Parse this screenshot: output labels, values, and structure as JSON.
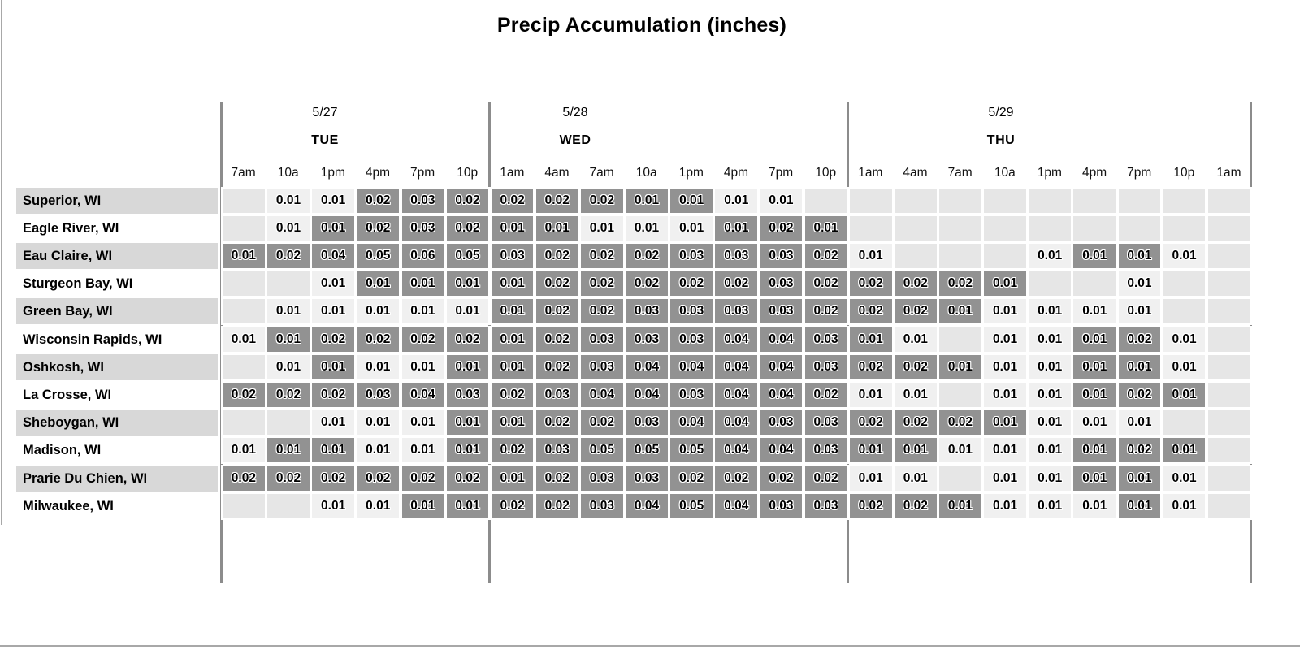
{
  "title": "Precip Accumulation (inches)",
  "colors": {
    "cell_empty": "#e6e6e6",
    "cell_light": "#f0f0f0",
    "cell_dark": "#929292",
    "row_label_stripe": "#d8d8d8",
    "row_label_plain": "#ffffff",
    "separator_line": "#8c8c8c",
    "edge_line": "#a8a8a8",
    "text": "#000000"
  },
  "shade_legend": {
    "D": "dark-gray highlighted cell",
    "L": "light cell with value",
    "": "empty cell"
  },
  "chart_data": {
    "type": "heatmap",
    "title": "Precip Accumulation (inches)",
    "unit": "inches",
    "legend_position": "none",
    "day_groups": [
      {
        "date": "5/27",
        "day": "TUE",
        "col_span": 6
      },
      {
        "date": "5/28",
        "day": "WED",
        "col_span": 8
      },
      {
        "date": "5/29",
        "day": "THU",
        "col_span": 9
      }
    ],
    "columns": [
      "7am",
      "10a",
      "1pm",
      "4pm",
      "7pm",
      "10p",
      "1am",
      "4am",
      "7am",
      "10a",
      "1pm",
      "4pm",
      "7pm",
      "10p",
      "1am",
      "4am",
      "7am",
      "10a",
      "1pm",
      "4pm",
      "7pm",
      "10p",
      "1am"
    ],
    "rows": [
      {
        "name": "Superior, WI",
        "cells": [
          [
            "",
            ""
          ],
          [
            "0.01",
            "L"
          ],
          [
            "0.01",
            "L"
          ],
          [
            "0.02",
            "D"
          ],
          [
            "0.03",
            "D"
          ],
          [
            "0.02",
            "D"
          ],
          [
            "0.02",
            "D"
          ],
          [
            "0.02",
            "D"
          ],
          [
            "0.02",
            "D"
          ],
          [
            "0.01",
            "D"
          ],
          [
            "0.01",
            "D"
          ],
          [
            "0.01",
            "L"
          ],
          [
            "0.01",
            "L"
          ],
          [
            "",
            ""
          ],
          [
            "",
            ""
          ],
          [
            "",
            ""
          ],
          [
            "",
            ""
          ],
          [
            "",
            ""
          ],
          [
            "",
            ""
          ],
          [
            "",
            ""
          ],
          [
            "",
            ""
          ],
          [
            "",
            ""
          ],
          [
            "",
            ""
          ]
        ]
      },
      {
        "name": "Eagle River, WI",
        "cells": [
          [
            "",
            ""
          ],
          [
            "0.01",
            "L"
          ],
          [
            "0.01",
            "D"
          ],
          [
            "0.02",
            "D"
          ],
          [
            "0.03",
            "D"
          ],
          [
            "0.02",
            "D"
          ],
          [
            "0.01",
            "D"
          ],
          [
            "0.01",
            "D"
          ],
          [
            "0.01",
            "L"
          ],
          [
            "0.01",
            "L"
          ],
          [
            "0.01",
            "L"
          ],
          [
            "0.01",
            "D"
          ],
          [
            "0.02",
            "D"
          ],
          [
            "0.01",
            "D"
          ],
          [
            "",
            ""
          ],
          [
            "",
            ""
          ],
          [
            "",
            ""
          ],
          [
            "",
            ""
          ],
          [
            "",
            ""
          ],
          [
            "",
            ""
          ],
          [
            "",
            ""
          ],
          [
            "",
            ""
          ],
          [
            "",
            ""
          ]
        ]
      },
      {
        "name": "Eau Claire, WI",
        "cells": [
          [
            "0.01",
            "D"
          ],
          [
            "0.02",
            "D"
          ],
          [
            "0.04",
            "D"
          ],
          [
            "0.05",
            "D"
          ],
          [
            "0.06",
            "D"
          ],
          [
            "0.05",
            "D"
          ],
          [
            "0.03",
            "D"
          ],
          [
            "0.02",
            "D"
          ],
          [
            "0.02",
            "D"
          ],
          [
            "0.02",
            "D"
          ],
          [
            "0.03",
            "D"
          ],
          [
            "0.03",
            "D"
          ],
          [
            "0.03",
            "D"
          ],
          [
            "0.02",
            "D"
          ],
          [
            "0.01",
            "L"
          ],
          [
            "",
            ""
          ],
          [
            "",
            ""
          ],
          [
            "",
            ""
          ],
          [
            "0.01",
            "L"
          ],
          [
            "0.01",
            "D"
          ],
          [
            "0.01",
            "D"
          ],
          [
            "0.01",
            "L"
          ],
          [
            "",
            ""
          ]
        ]
      },
      {
        "name": "Sturgeon Bay, WI",
        "cells": [
          [
            "",
            ""
          ],
          [
            "",
            ""
          ],
          [
            "0.01",
            "L"
          ],
          [
            "0.01",
            "D"
          ],
          [
            "0.01",
            "D"
          ],
          [
            "0.01",
            "D"
          ],
          [
            "0.01",
            "D"
          ],
          [
            "0.02",
            "D"
          ],
          [
            "0.02",
            "D"
          ],
          [
            "0.02",
            "D"
          ],
          [
            "0.02",
            "D"
          ],
          [
            "0.02",
            "D"
          ],
          [
            "0.03",
            "D"
          ],
          [
            "0.02",
            "D"
          ],
          [
            "0.02",
            "D"
          ],
          [
            "0.02",
            "D"
          ],
          [
            "0.02",
            "D"
          ],
          [
            "0.01",
            "D"
          ],
          [
            "",
            ""
          ],
          [
            "",
            ""
          ],
          [
            "0.01",
            "L"
          ],
          [
            "",
            ""
          ],
          [
            "",
            ""
          ]
        ]
      },
      {
        "name": "Green Bay, WI",
        "cells": [
          [
            "",
            ""
          ],
          [
            "0.01",
            "L"
          ],
          [
            "0.01",
            "L"
          ],
          [
            "0.01",
            "L"
          ],
          [
            "0.01",
            "L"
          ],
          [
            "0.01",
            "L"
          ],
          [
            "0.01",
            "D"
          ],
          [
            "0.02",
            "D"
          ],
          [
            "0.02",
            "D"
          ],
          [
            "0.03",
            "D"
          ],
          [
            "0.03",
            "D"
          ],
          [
            "0.03",
            "D"
          ],
          [
            "0.03",
            "D"
          ],
          [
            "0.02",
            "D"
          ],
          [
            "0.02",
            "D"
          ],
          [
            "0.02",
            "D"
          ],
          [
            "0.01",
            "D"
          ],
          [
            "0.01",
            "L"
          ],
          [
            "0.01",
            "L"
          ],
          [
            "0.01",
            "L"
          ],
          [
            "0.01",
            "L"
          ],
          [
            "",
            ""
          ],
          [
            "",
            ""
          ]
        ]
      },
      {
        "name": "Wisconsin Rapids, WI",
        "cells": [
          [
            "0.01",
            "L"
          ],
          [
            "0.01",
            "D"
          ],
          [
            "0.02",
            "D"
          ],
          [
            "0.02",
            "D"
          ],
          [
            "0.02",
            "D"
          ],
          [
            "0.02",
            "D"
          ],
          [
            "0.01",
            "D"
          ],
          [
            "0.02",
            "D"
          ],
          [
            "0.03",
            "D"
          ],
          [
            "0.03",
            "D"
          ],
          [
            "0.03",
            "D"
          ],
          [
            "0.04",
            "D"
          ],
          [
            "0.04",
            "D"
          ],
          [
            "0.03",
            "D"
          ],
          [
            "0.01",
            "D"
          ],
          [
            "0.01",
            "L"
          ],
          [
            "",
            ""
          ],
          [
            "0.01",
            "L"
          ],
          [
            "0.01",
            "L"
          ],
          [
            "0.01",
            "D"
          ],
          [
            "0.02",
            "D"
          ],
          [
            "0.01",
            "L"
          ],
          [
            "",
            ""
          ]
        ]
      },
      {
        "name": "Oshkosh, WI",
        "cells": [
          [
            "",
            ""
          ],
          [
            "0.01",
            "L"
          ],
          [
            "0.01",
            "D"
          ],
          [
            "0.01",
            "L"
          ],
          [
            "0.01",
            "L"
          ],
          [
            "0.01",
            "D"
          ],
          [
            "0.01",
            "D"
          ],
          [
            "0.02",
            "D"
          ],
          [
            "0.03",
            "D"
          ],
          [
            "0.04",
            "D"
          ],
          [
            "0.04",
            "D"
          ],
          [
            "0.04",
            "D"
          ],
          [
            "0.04",
            "D"
          ],
          [
            "0.03",
            "D"
          ],
          [
            "0.02",
            "D"
          ],
          [
            "0.02",
            "D"
          ],
          [
            "0.01",
            "D"
          ],
          [
            "0.01",
            "L"
          ],
          [
            "0.01",
            "L"
          ],
          [
            "0.01",
            "D"
          ],
          [
            "0.01",
            "D"
          ],
          [
            "0.01",
            "L"
          ],
          [
            "",
            ""
          ]
        ]
      },
      {
        "name": "La Crosse, WI",
        "cells": [
          [
            "0.02",
            "D"
          ],
          [
            "0.02",
            "D"
          ],
          [
            "0.02",
            "D"
          ],
          [
            "0.03",
            "D"
          ],
          [
            "0.04",
            "D"
          ],
          [
            "0.03",
            "D"
          ],
          [
            "0.02",
            "D"
          ],
          [
            "0.03",
            "D"
          ],
          [
            "0.04",
            "D"
          ],
          [
            "0.04",
            "D"
          ],
          [
            "0.03",
            "D"
          ],
          [
            "0.04",
            "D"
          ],
          [
            "0.04",
            "D"
          ],
          [
            "0.02",
            "D"
          ],
          [
            "0.01",
            "L"
          ],
          [
            "0.01",
            "L"
          ],
          [
            "",
            ""
          ],
          [
            "0.01",
            "L"
          ],
          [
            "0.01",
            "L"
          ],
          [
            "0.01",
            "D"
          ],
          [
            "0.02",
            "D"
          ],
          [
            "0.01",
            "D"
          ],
          [
            "",
            ""
          ]
        ]
      },
      {
        "name": "Sheboygan, WI",
        "cells": [
          [
            "",
            ""
          ],
          [
            "",
            ""
          ],
          [
            "0.01",
            "L"
          ],
          [
            "0.01",
            "L"
          ],
          [
            "0.01",
            "L"
          ],
          [
            "0.01",
            "D"
          ],
          [
            "0.01",
            "D"
          ],
          [
            "0.02",
            "D"
          ],
          [
            "0.02",
            "D"
          ],
          [
            "0.03",
            "D"
          ],
          [
            "0.04",
            "D"
          ],
          [
            "0.04",
            "D"
          ],
          [
            "0.03",
            "D"
          ],
          [
            "0.03",
            "D"
          ],
          [
            "0.02",
            "D"
          ],
          [
            "0.02",
            "D"
          ],
          [
            "0.02",
            "D"
          ],
          [
            "0.01",
            "D"
          ],
          [
            "0.01",
            "L"
          ],
          [
            "0.01",
            "L"
          ],
          [
            "0.01",
            "L"
          ],
          [
            "",
            ""
          ],
          [
            "",
            ""
          ]
        ]
      },
      {
        "name": "Madison, WI",
        "cells": [
          [
            "0.01",
            "L"
          ],
          [
            "0.01",
            "D"
          ],
          [
            "0.01",
            "D"
          ],
          [
            "0.01",
            "L"
          ],
          [
            "0.01",
            "L"
          ],
          [
            "0.01",
            "D"
          ],
          [
            "0.02",
            "D"
          ],
          [
            "0.03",
            "D"
          ],
          [
            "0.05",
            "D"
          ],
          [
            "0.05",
            "D"
          ],
          [
            "0.05",
            "D"
          ],
          [
            "0.04",
            "D"
          ],
          [
            "0.04",
            "D"
          ],
          [
            "0.03",
            "D"
          ],
          [
            "0.01",
            "D"
          ],
          [
            "0.01",
            "D"
          ],
          [
            "0.01",
            "L"
          ],
          [
            "0.01",
            "L"
          ],
          [
            "0.01",
            "L"
          ],
          [
            "0.01",
            "D"
          ],
          [
            "0.02",
            "D"
          ],
          [
            "0.01",
            "D"
          ],
          [
            "",
            ""
          ]
        ]
      },
      {
        "name": "Prarie Du Chien, WI",
        "cells": [
          [
            "0.02",
            "D"
          ],
          [
            "0.02",
            "D"
          ],
          [
            "0.02",
            "D"
          ],
          [
            "0.02",
            "D"
          ],
          [
            "0.02",
            "D"
          ],
          [
            "0.02",
            "D"
          ],
          [
            "0.01",
            "D"
          ],
          [
            "0.02",
            "D"
          ],
          [
            "0.03",
            "D"
          ],
          [
            "0.03",
            "D"
          ],
          [
            "0.02",
            "D"
          ],
          [
            "0.02",
            "D"
          ],
          [
            "0.02",
            "D"
          ],
          [
            "0.02",
            "D"
          ],
          [
            "0.01",
            "L"
          ],
          [
            "0.01",
            "L"
          ],
          [
            "",
            ""
          ],
          [
            "0.01",
            "L"
          ],
          [
            "0.01",
            "L"
          ],
          [
            "0.01",
            "D"
          ],
          [
            "0.01",
            "D"
          ],
          [
            "0.01",
            "L"
          ],
          [
            "",
            ""
          ]
        ]
      },
      {
        "name": "Milwaukee, WI",
        "cells": [
          [
            "",
            ""
          ],
          [
            "",
            ""
          ],
          [
            "0.01",
            "L"
          ],
          [
            "0.01",
            "L"
          ],
          [
            "0.01",
            "D"
          ],
          [
            "0.01",
            "D"
          ],
          [
            "0.02",
            "D"
          ],
          [
            "0.02",
            "D"
          ],
          [
            "0.03",
            "D"
          ],
          [
            "0.04",
            "D"
          ],
          [
            "0.05",
            "D"
          ],
          [
            "0.04",
            "D"
          ],
          [
            "0.03",
            "D"
          ],
          [
            "0.03",
            "D"
          ],
          [
            "0.02",
            "D"
          ],
          [
            "0.02",
            "D"
          ],
          [
            "0.01",
            "D"
          ],
          [
            "0.01",
            "L"
          ],
          [
            "0.01",
            "L"
          ],
          [
            "0.01",
            "L"
          ],
          [
            "0.01",
            "D"
          ],
          [
            "0.01",
            "L"
          ],
          [
            "",
            ""
          ]
        ]
      }
    ]
  }
}
